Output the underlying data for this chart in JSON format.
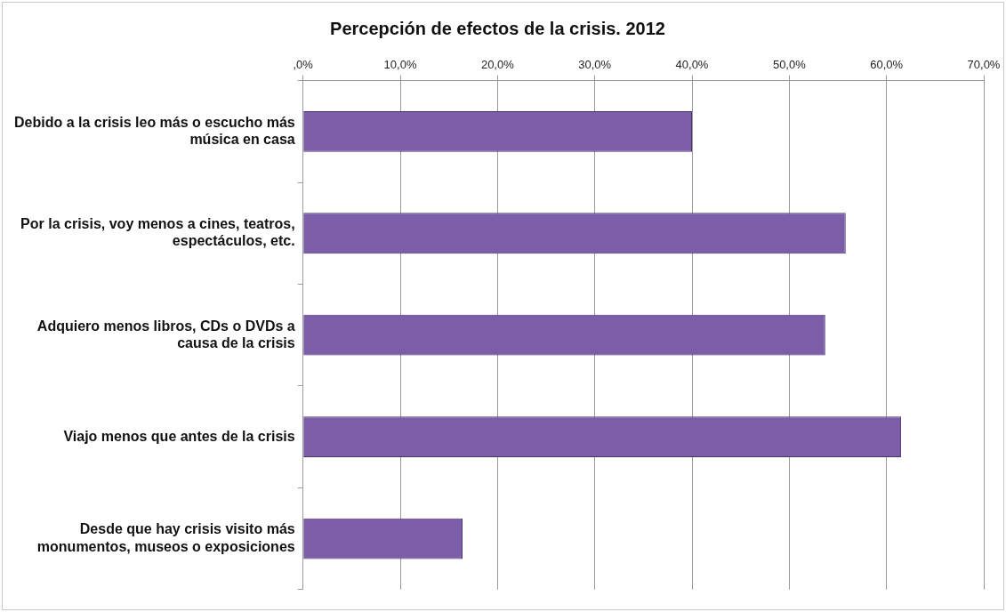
{
  "chart_data": {
    "type": "bar",
    "orientation": "horizontal",
    "title": "Percepción de efectos de la crisis. 2012",
    "categories": [
      "Debido a la crisis leo más o escucho más música en casa",
      "Por la crisis, voy menos a cines, teatros, espectáculos, etc.",
      "Adquiero menos libros, CDs o DVDs a causa de la crisis",
      "Viajo menos que antes de la crisis",
      "Desde que hay crisis visito más monumentos, museos o exposiciones"
    ],
    "values": [
      40.0,
      55.8,
      53.7,
      61.5,
      16.4
    ],
    "color": "#7b5ea7",
    "xlim": [
      0,
      70
    ],
    "xticks": [
      {
        "value": 0,
        "label": ",0%"
      },
      {
        "value": 10,
        "label": "10,0%"
      },
      {
        "value": 20,
        "label": "20,0%"
      },
      {
        "value": 30,
        "label": "30,0%"
      },
      {
        "value": 40,
        "label": "40,0%"
      },
      {
        "value": 50,
        "label": "50,0%"
      },
      {
        "value": 60,
        "label": "60,0%"
      },
      {
        "value": 70,
        "label": "70,0%"
      }
    ],
    "grid": "x",
    "legend": false
  }
}
